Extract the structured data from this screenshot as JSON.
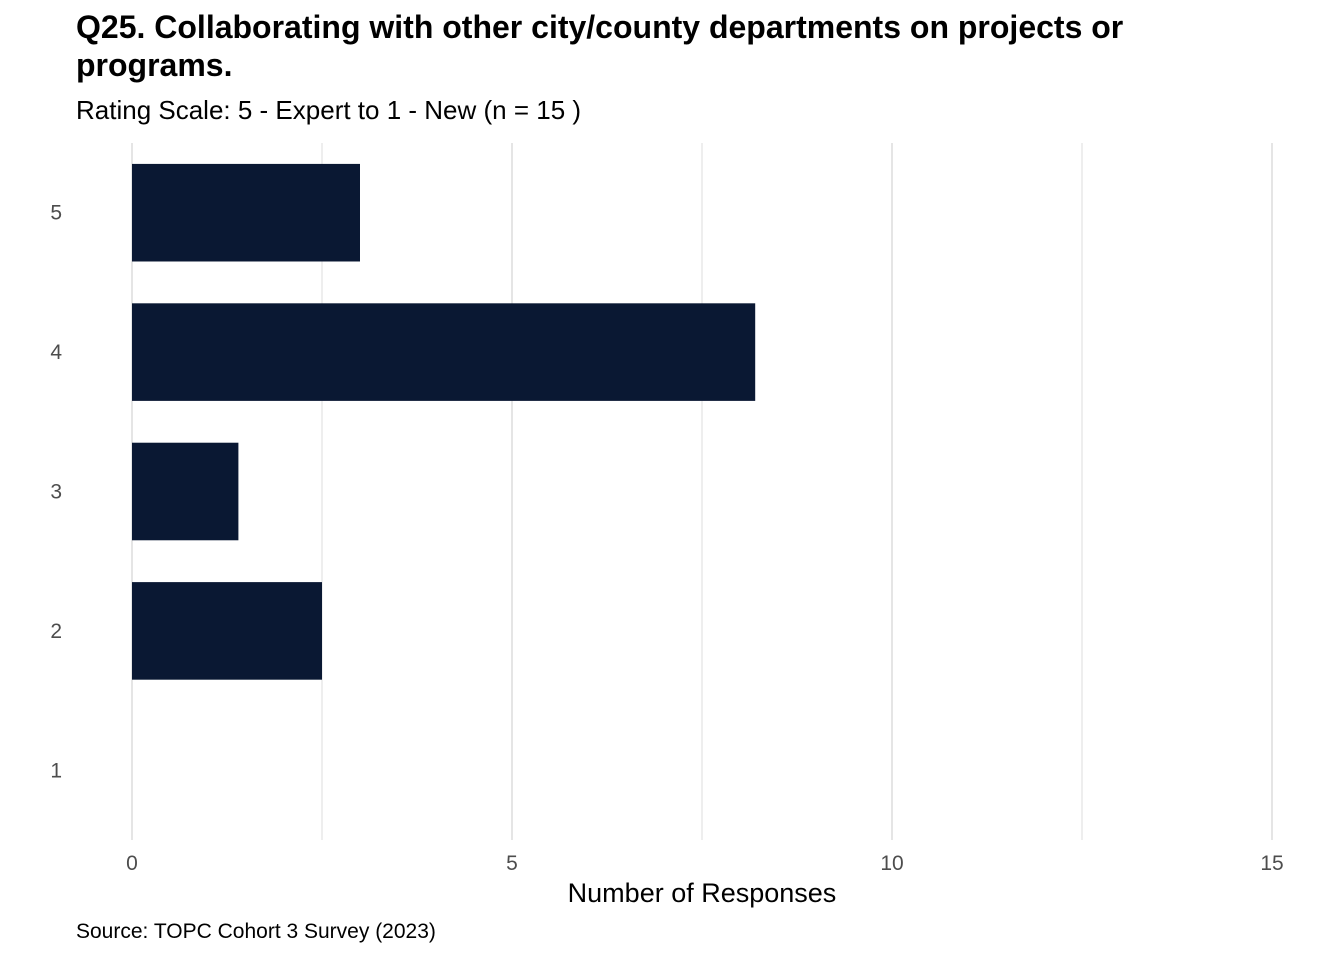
{
  "chart_data": {
    "type": "bar",
    "orientation": "horizontal",
    "title": "Q25. Collaborating with other city/county departments on projects or programs.",
    "subtitle": "Rating Scale: 5 - Expert to 1 - New (n = 15 )",
    "caption": "Source: TOPC Cohort 3 Survey (2023)",
    "xlabel": "Number of Responses",
    "ylabel": "",
    "categories": [
      "5",
      "4",
      "3",
      "2",
      "1"
    ],
    "values": [
      3,
      8.2,
      1.4,
      2.5,
      0
    ],
    "xlim": [
      0,
      15
    ],
    "x_ticks": [
      "0",
      "5",
      "10",
      "15"
    ],
    "grid": true,
    "legend": "none",
    "bar_color": "#0a1833",
    "grid_color": "#e5e5e5"
  }
}
